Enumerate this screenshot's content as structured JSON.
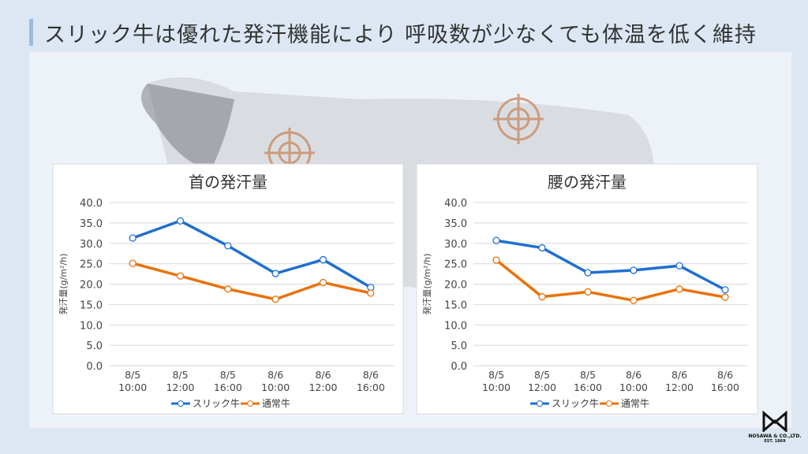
{
  "header": {
    "title": "スリック牛は優れた発汗機能により 呼吸数が少なくても体温を低く維持"
  },
  "logo": {
    "name": "NOSAWA & CO.,LTD.",
    "est": "EST. 1869"
  },
  "chart_data": [
    {
      "type": "line",
      "title": "首の発汗量",
      "y_label": "発汗量(g/m²/h)",
      "categories": [
        "8/5\n10:00",
        "8/5\n12:00",
        "8/5\n16:00",
        "8/6\n10:00",
        "8/6\n12:00",
        "8/6\n16:00"
      ],
      "series": [
        {
          "name": "スリック牛",
          "color": "#1f6fd1",
          "values": [
            31.3,
            35.5,
            29.4,
            22.6,
            26.0,
            19.2
          ]
        },
        {
          "name": "通常牛",
          "color": "#e8720c",
          "values": [
            25.1,
            22.0,
            18.8,
            16.3,
            20.4,
            17.8
          ]
        }
      ],
      "ylim": [
        0,
        40
      ],
      "yticks": [
        {
          "value": 0,
          "label": "0.0"
        },
        {
          "value": 5,
          "label": "5.0"
        },
        {
          "value": 10,
          "label": "10.0"
        },
        {
          "value": 15,
          "label": "15.0"
        },
        {
          "value": 20,
          "label": "20.0"
        },
        {
          "value": 25,
          "label": "25.0"
        },
        {
          "value": 30,
          "label": "30.0"
        },
        {
          "value": 35,
          "label": "35.0"
        },
        {
          "value": 40,
          "label": "40.0"
        }
      ],
      "grid": true,
      "legend": "bottom"
    },
    {
      "type": "line",
      "title": "腰の発汗量",
      "y_label": "発汗量(g/m²/h)",
      "categories": [
        "8/5\n10:00",
        "8/5\n12:00",
        "8/5\n16:00",
        "8/6\n10:00",
        "8/6\n12:00",
        "8/6\n16:00"
      ],
      "series": [
        {
          "name": "スリック牛",
          "color": "#1f6fd1",
          "values": [
            30.7,
            28.9,
            22.8,
            23.4,
            24.5,
            18.6
          ]
        },
        {
          "name": "通常牛",
          "color": "#e8720c",
          "values": [
            25.9,
            16.9,
            18.1,
            16.0,
            18.8,
            16.8
          ]
        }
      ],
      "ylim": [
        0,
        40
      ],
      "yticks": [
        {
          "value": 0,
          "label": "0.0"
        },
        {
          "value": 5,
          "label": "5.0"
        },
        {
          "value": 10,
          "label": "10.0"
        },
        {
          "value": 15,
          "label": "15.0"
        },
        {
          "value": 20,
          "label": "20.0"
        },
        {
          "value": 25,
          "label": "25.0"
        },
        {
          "value": 30,
          "label": "30.0"
        },
        {
          "value": 35,
          "label": "35.0"
        },
        {
          "value": 40,
          "label": "40.0"
        }
      ],
      "grid": true,
      "legend": "bottom"
    }
  ]
}
